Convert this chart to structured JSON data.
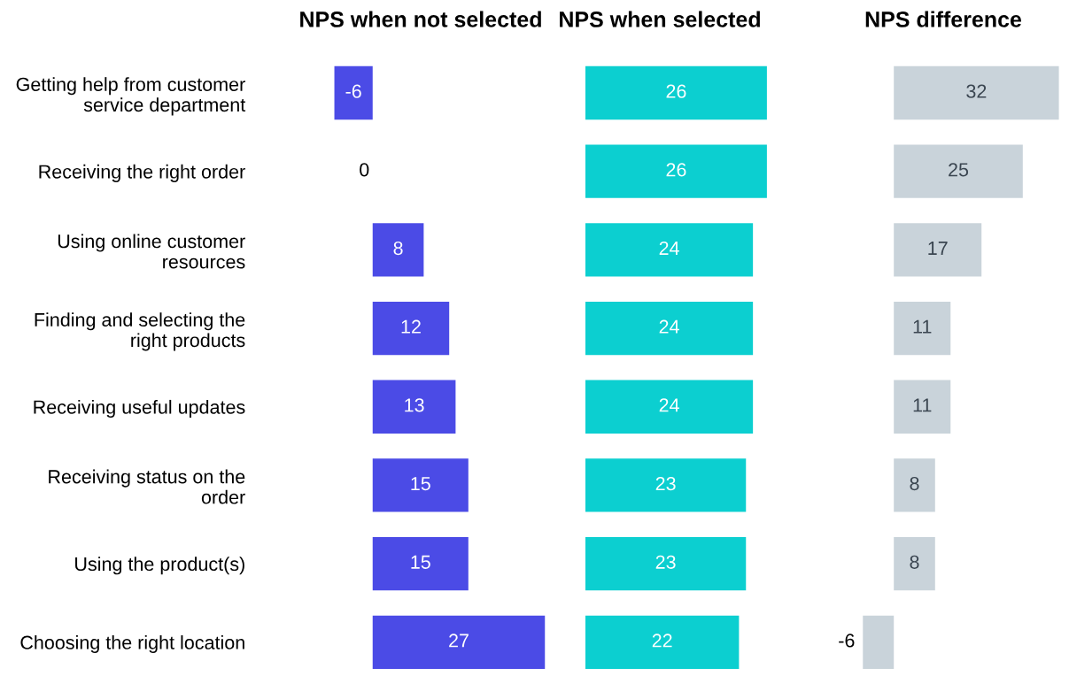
{
  "chart_data": [
    {
      "type": "bar",
      "orientation": "horizontal",
      "title": "NPS when not selected",
      "categories": [
        "Getting help from customer service department",
        "Receiving the right order",
        "Using online customer resources",
        "Finding and selecting the right products",
        "Receiving useful updates",
        "Receiving status on the order",
        "Using the product(s)",
        "Choosing the right location"
      ],
      "values": [
        -6,
        0,
        8,
        12,
        13,
        15,
        15,
        27
      ],
      "color": "#4b4be6",
      "data_labels": true,
      "tick_labels": "y"
    },
    {
      "type": "bar",
      "orientation": "horizontal",
      "title": "NPS when selected",
      "categories": [
        null,
        null,
        null,
        null,
        null,
        null,
        null,
        null
      ],
      "values": [
        26,
        26,
        24,
        24,
        24,
        23,
        23,
        22
      ],
      "color": "#0ccfd0",
      "data_labels": true,
      "tick_labels": false
    },
    {
      "type": "bar",
      "orientation": "horizontal",
      "title": "NPS difference",
      "categories": [
        null,
        null,
        null,
        null,
        null,
        null,
        null,
        null
      ],
      "values": [
        32,
        25,
        17,
        11,
        11,
        8,
        8,
        -6
      ],
      "color": "#c9d3da",
      "data_labels": true,
      "tick_labels": false
    }
  ]
}
